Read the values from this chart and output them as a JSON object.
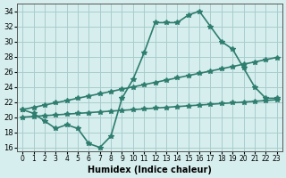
{
  "x": [
    0,
    1,
    2,
    3,
    4,
    5,
    6,
    7,
    8,
    9,
    10,
    11,
    12,
    13,
    14,
    15,
    16,
    17,
    18,
    19,
    20,
    21,
    22,
    23
  ],
  "y_main": [
    21.0,
    20.5,
    19.5,
    18.5,
    19.0,
    18.5,
    16.5,
    16.0,
    17.5,
    22.5,
    25.0,
    28.5,
    32.5,
    32.5,
    32.5,
    33.5,
    34.0,
    32.0,
    30.0,
    29.0,
    26.5,
    24.0,
    22.5,
    22.5
  ],
  "y_upper": [
    21.0,
    21.3,
    21.6,
    21.9,
    22.2,
    22.5,
    22.8,
    23.1,
    23.4,
    23.7,
    24.0,
    24.3,
    24.6,
    24.9,
    25.2,
    25.5,
    25.8,
    26.1,
    26.4,
    26.7,
    27.0,
    27.3,
    27.6,
    27.9
  ],
  "y_lower": [
    20.0,
    20.1,
    20.2,
    20.3,
    20.4,
    20.5,
    20.6,
    20.7,
    20.8,
    20.9,
    21.0,
    21.1,
    21.2,
    21.3,
    21.4,
    21.5,
    21.6,
    21.7,
    21.8,
    21.9,
    22.0,
    22.1,
    22.2,
    22.3
  ],
  "line_color": "#2e7d6e",
  "bg_color": "#d6eeee",
  "grid_color": "#aacccc",
  "xlabel": "Humidex (Indice chaleur)",
  "xlim": [
    -0.5,
    23.5
  ],
  "ylim": [
    15.5,
    35
  ],
  "yticks": [
    16,
    18,
    20,
    22,
    24,
    26,
    28,
    30,
    32,
    34
  ],
  "xticks": [
    0,
    1,
    2,
    3,
    4,
    5,
    6,
    7,
    8,
    9,
    10,
    11,
    12,
    13,
    14,
    15,
    16,
    17,
    18,
    19,
    20,
    21,
    22,
    23
  ],
  "xtick_labels": [
    "0",
    "1",
    "2",
    "3",
    "4",
    "5",
    "6",
    "7",
    "8",
    "9",
    "10",
    "11",
    "12",
    "13",
    "14",
    "15",
    "16",
    "17",
    "18",
    "19",
    "20",
    "21",
    "22",
    "23"
  ],
  "marker": "*",
  "markersize": 4,
  "linewidth": 1.2
}
